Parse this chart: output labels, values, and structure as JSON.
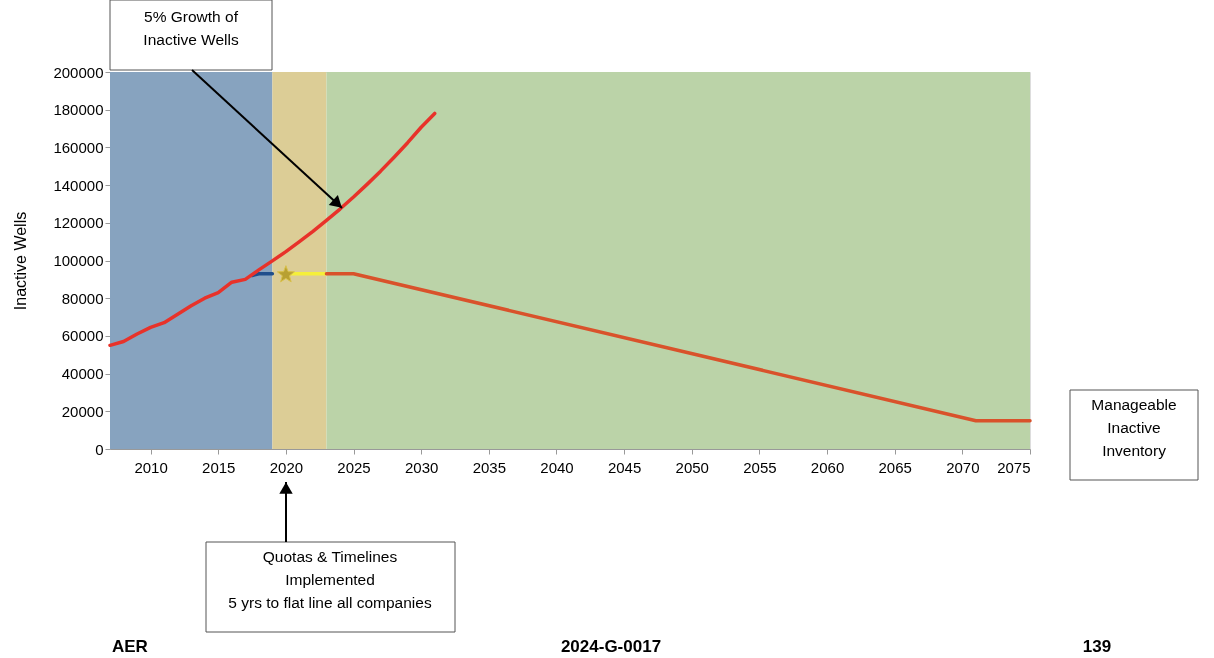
{
  "chart_data": {
    "type": "line",
    "ylabel": "Inactive Wells",
    "xlim": [
      2007,
      2075
    ],
    "xticks": [
      2010,
      2015,
      2020,
      2025,
      2030,
      2035,
      2040,
      2045,
      2050,
      2055,
      2060,
      2065,
      2070,
      2075
    ],
    "ylim": [
      0,
      200000
    ],
    "yticks": [
      0,
      20000,
      40000,
      60000,
      80000,
      100000,
      120000,
      140000,
      160000,
      180000,
      200000
    ],
    "grid": false,
    "marker": "none",
    "line_style": "solid",
    "bands": [
      {
        "axis": "x",
        "from": 2007,
        "to": 2019,
        "color": "#87a3bf"
      },
      {
        "axis": "x",
        "from": 2019,
        "to": 2023,
        "color": "#dccd96"
      },
      {
        "axis": "x",
        "from": 2023,
        "to": 2075,
        "color": "#bbd3a8"
      }
    ],
    "series": [
      {
        "type": "line",
        "color": "#1f4e8c",
        "x": [
          2017.5,
          2018,
          2019
        ],
        "values": [
          92000,
          93000,
          93000
        ]
      },
      {
        "type": "line",
        "color": "#e8322a",
        "x": [
          2007,
          2008,
          2009,
          2010,
          2011,
          2012,
          2013,
          2014,
          2015,
          2016,
          2017,
          2018,
          2019,
          2020,
          2021,
          2022,
          2023,
          2024,
          2025,
          2026,
          2027,
          2028,
          2029,
          2030,
          2031
        ],
        "values": [
          55000,
          57000,
          61000,
          64500,
          67000,
          71500,
          76000,
          80000,
          83000,
          88500,
          90000,
          95000,
          99800,
          104700,
          110000,
          115500,
          121300,
          127300,
          133700,
          140400,
          147400,
          154800,
          162500,
          170700,
          178000
        ]
      },
      {
        "type": "line",
        "color": "#f5ef3a",
        "x": [
          2020,
          2023
        ],
        "values": [
          93000,
          93000
        ]
      },
      {
        "type": "line",
        "color": "#d9522b",
        "x": [
          2023,
          2025,
          2071,
          2075
        ],
        "values": [
          93000,
          93000,
          15000,
          15000
        ]
      },
      {
        "type": "scatter",
        "marker": "star",
        "color": "#b8a032",
        "x": [
          2020
        ],
        "values": [
          92500
        ]
      }
    ],
    "annotations": [
      "5% Growth of\nInactive Wells",
      "Quotas & Timelines\nImplemented\n5 yrs to flat line all companies",
      "Manageable\nInactive\nInventory",
      "AER",
      "2024-G-0017",
      "139"
    ]
  }
}
